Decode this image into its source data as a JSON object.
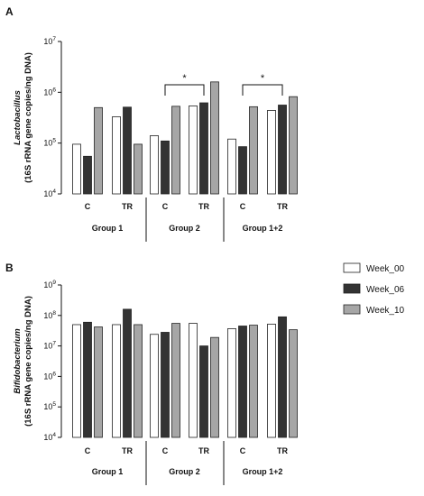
{
  "chart_data": [
    {
      "panel": "A",
      "type": "bar",
      "yscale": "log",
      "ylim": [
        10000,
        10000000
      ],
      "yticks": [
        {
          "base": "10",
          "exp": "4"
        },
        {
          "base": "10",
          "exp": "5"
        },
        {
          "base": "10",
          "exp": "6"
        },
        {
          "base": "10",
          "exp": "7"
        }
      ],
      "ylabel_line1": "Lactobacillus",
      "ylabel_line2": "(16S rRNA gene copies/ng DNA)",
      "groups": [
        "Group 1",
        "Group 2",
        "Group 1+2"
      ],
      "conditions": [
        "C",
        "TR"
      ],
      "series": [
        {
          "name": "Week_00",
          "values": [
            [
              95000,
              330000
            ],
            [
              140000,
              540000
            ],
            [
              120000,
              440000
            ]
          ]
        },
        {
          "name": "Week_06",
          "values": [
            [
              55000,
              510000
            ],
            [
              110000,
              620000
            ],
            [
              85000,
              560000
            ]
          ]
        },
        {
          "name": "Week_10",
          "values": [
            [
              500000,
              95000
            ],
            [
              530000,
              1600000
            ],
            [
              520000,
              820000
            ]
          ]
        }
      ],
      "significance": [
        {
          "group": 1,
          "label": "*"
        },
        {
          "group": 2,
          "label": "*"
        }
      ]
    },
    {
      "panel": "B",
      "type": "bar",
      "yscale": "log",
      "ylim": [
        10000,
        1000000000
      ],
      "yticks": [
        {
          "base": "10",
          "exp": "4"
        },
        {
          "base": "10",
          "exp": "5"
        },
        {
          "base": "10",
          "exp": "6"
        },
        {
          "base": "10",
          "exp": "7"
        },
        {
          "base": "10",
          "exp": "8"
        },
        {
          "base": "10",
          "exp": "9"
        }
      ],
      "ylabel_line1": "Bifidobacterium",
      "ylabel_line2": "(16S rRNA gene copies/ng DNA)",
      "groups": [
        "Group 1",
        "Group 2",
        "Group 1+2"
      ],
      "conditions": [
        "C",
        "TR"
      ],
      "series": [
        {
          "name": "Week_00",
          "values": [
            [
              50000000,
              50000000
            ],
            [
              24000000,
              55000000
            ],
            [
              37000000,
              52000000
            ]
          ]
        },
        {
          "name": "Week_06",
          "values": [
            [
              60000000,
              160000000
            ],
            [
              28000000,
              10000000
            ],
            [
              45000000,
              90000000
            ]
          ]
        },
        {
          "name": "Week_10",
          "values": [
            [
              42000000,
              50000000
            ],
            [
              55000000,
              19000000
            ],
            [
              48000000,
              34000000
            ]
          ]
        }
      ],
      "significance": []
    }
  ],
  "legend": [
    {
      "label": "Week_00",
      "color": "#ffffff"
    },
    {
      "label": "Week_06",
      "color": "#333333"
    },
    {
      "label": "Week_10",
      "color": "#a6a6a6"
    }
  ]
}
